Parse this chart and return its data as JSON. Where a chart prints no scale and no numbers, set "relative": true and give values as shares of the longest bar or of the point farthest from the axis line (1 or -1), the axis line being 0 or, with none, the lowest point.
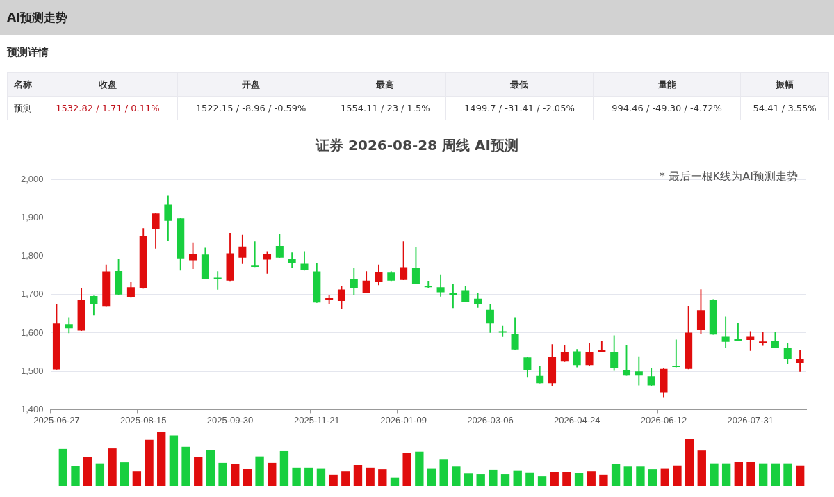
{
  "chart_data": [
    {
      "type": "other",
      "title": "AI预测走势",
      "subtitle": "预测详情",
      "annotations": [
        "名称",
        "收盘",
        "开盘",
        "最高",
        "最低",
        "量能",
        "振幅",
        "预测",
        "1532.82 / 1.71 / 0.11%",
        "1522.15 / -8.96 / -0.59%",
        "1554.11 / 23 / 1.5%",
        "1499.7 / -31.41 / -2.05%",
        "994.46 / -49.30 / -4.72%",
        "54.41 / 3.55%"
      ]
    },
    {
      "type": "candlestick",
      "title": "证券 2026-08-28 周线 AI预测",
      "annotations": [
        "* 最后一根K线为AI预测走势"
      ],
      "categories": [
        "2025-06-27",
        null,
        null,
        null,
        null,
        null,
        null,
        "2025-08-15",
        null,
        null,
        null,
        null,
        null,
        null,
        "2025-09-30",
        null,
        null,
        null,
        null,
        null,
        null,
        "2025-11-21",
        null,
        null,
        null,
        null,
        null,
        null,
        "2026-01-09",
        null,
        null,
        null,
        null,
        null,
        null,
        "2026-03-06",
        null,
        null,
        null,
        null,
        null,
        null,
        "2026-04-24",
        null,
        null,
        null,
        null,
        null,
        null,
        "2026-06-12",
        null,
        null,
        null,
        null,
        null,
        null,
        "2026-07-31",
        null,
        null,
        null,
        null
      ],
      "ohlc": [
        [
          1505,
          1675,
          1505,
          1625
        ],
        [
          1623,
          1640,
          1600,
          1612
        ],
        [
          1606,
          1717,
          1606,
          1687
        ],
        [
          1696,
          1696,
          1647,
          1675
        ],
        [
          1670,
          1777,
          1670,
          1760
        ],
        [
          1761,
          1793,
          1699,
          1700
        ],
        [
          1694,
          1733,
          1694,
          1719
        ],
        [
          1716,
          1872,
          1716,
          1853
        ],
        [
          1870,
          1911,
          1820,
          1911
        ],
        [
          1934,
          1957,
          1840,
          1892
        ],
        [
          1898,
          1898,
          1763,
          1794
        ],
        [
          1789,
          1835,
          1767,
          1805
        ],
        [
          1804,
          1821,
          1740,
          1740
        ],
        [
          1743,
          1760,
          1713,
          1740
        ],
        [
          1736,
          1860,
          1736,
          1807
        ],
        [
          1796,
          1855,
          1780,
          1825
        ],
        [
          1777,
          1838,
          1772,
          1772
        ],
        [
          1791,
          1812,
          1755,
          1806
        ],
        [
          1826,
          1858,
          1796,
          1796
        ],
        [
          1792,
          1809,
          1769,
          1782
        ],
        [
          1780,
          1812,
          1763,
          1763
        ],
        [
          1760,
          1782,
          1679,
          1679
        ],
        [
          1687,
          1697,
          1675,
          1692
        ],
        [
          1683,
          1722,
          1664,
          1713
        ],
        [
          1740,
          1768,
          1699,
          1716
        ],
        [
          1705,
          1760,
          1705,
          1736
        ],
        [
          1733,
          1777,
          1725,
          1758
        ],
        [
          1757,
          1760,
          1736,
          1736
        ],
        [
          1738,
          1838,
          1738,
          1771
        ],
        [
          1769,
          1824,
          1728,
          1728
        ],
        [
          1723,
          1735,
          1717,
          1719
        ],
        [
          1719,
          1752,
          1695,
          1706
        ],
        [
          1703,
          1727,
          1665,
          1699
        ],
        [
          1711,
          1721,
          1681,
          1681
        ],
        [
          1689,
          1703,
          1666,
          1675
        ],
        [
          1660,
          1675,
          1601,
          1625
        ],
        [
          1604,
          1618,
          1590,
          1601
        ],
        [
          1597,
          1640,
          1557,
          1557
        ],
        [
          1536,
          1536,
          1484,
          1504
        ],
        [
          1488,
          1514,
          1469,
          1469
        ],
        [
          1469,
          1570,
          1463,
          1538
        ],
        [
          1525,
          1567,
          1525,
          1550
        ],
        [
          1552,
          1557,
          1511,
          1516
        ],
        [
          1516,
          1572,
          1514,
          1549
        ],
        [
          1551,
          1579,
          1551,
          1553
        ],
        [
          1549,
          1593,
          1502,
          1508
        ],
        [
          1504,
          1567,
          1489,
          1489
        ],
        [
          1500,
          1538,
          1464,
          1489
        ],
        [
          1487,
          1508,
          1463,
          1463
        ],
        [
          1445,
          1508,
          1433,
          1506
        ],
        [
          1513,
          1582,
          1511,
          1511
        ],
        [
          1506,
          1670,
          1506,
          1601
        ],
        [
          1607,
          1713,
          1598,
          1659
        ],
        [
          1687,
          1687,
          1596,
          1596
        ],
        [
          1590,
          1642,
          1562,
          1577
        ],
        [
          1584,
          1626,
          1579,
          1579
        ],
        [
          1582,
          1604,
          1554,
          1590
        ],
        [
          1574,
          1601,
          1567,
          1577
        ],
        [
          1579,
          1601,
          1562,
          1562
        ],
        [
          1560,
          1573,
          1521,
          1531
        ],
        [
          1522.15,
          1554.11,
          1499.7,
          1532.82
        ]
      ],
      "colors": [
        "#e00d0d",
        "#18cf3f",
        "#e00d0d",
        "#18cf3f",
        "#e00d0d",
        "#18cf3f",
        "#e00d0d",
        "#e00d0d",
        "#e00d0d",
        "#18cf3f",
        "#18cf3f",
        "#e00d0d",
        "#18cf3f",
        "#18cf3f",
        "#e00d0d",
        "#e00d0d",
        "#18cf3f",
        "#e00d0d",
        "#18cf3f",
        "#18cf3f",
        "#18cf3f",
        "#18cf3f",
        "#e00d0d",
        "#e00d0d",
        "#18cf3f",
        "#e00d0d",
        "#e00d0d",
        "#18cf3f",
        "#e00d0d",
        "#18cf3f",
        "#18cf3f",
        "#18cf3f",
        "#18cf3f",
        "#18cf3f",
        "#18cf3f",
        "#18cf3f",
        "#18cf3f",
        "#18cf3f",
        "#18cf3f",
        "#18cf3f",
        "#e00d0d",
        "#e00d0d",
        "#18cf3f",
        "#e00d0d",
        "#e00d0d",
        "#18cf3f",
        "#18cf3f",
        "#18cf3f",
        "#18cf3f",
        "#e00d0d",
        "#18cf3f",
        "#e00d0d",
        "#e00d0d",
        "#18cf3f",
        "#18cf3f",
        "#18cf3f",
        "#e00d0d",
        "#e00d0d",
        "#18cf3f",
        "#18cf3f",
        "#e00d0d"
      ],
      "ylim": [
        1400,
        2000
      ],
      "yticks": [
        {
          "value": 1400,
          "label": "1,400"
        },
        {
          "value": 1500,
          "label": "1,500"
        },
        {
          "value": 1600,
          "label": "1,600"
        },
        {
          "value": 1700,
          "label": "1,700"
        },
        {
          "value": 1800,
          "label": "1,800"
        },
        {
          "value": 1900,
          "label": "1,900"
        },
        {
          "value": 2000,
          "label": "2,000"
        }
      ],
      "grid": "y"
    },
    {
      "type": "bar",
      "relative": true,
      "categories": [
        null,
        null,
        null,
        null,
        null,
        null,
        null,
        null,
        null,
        null,
        null,
        null,
        null,
        null,
        null,
        null,
        null,
        null,
        null,
        null,
        null,
        null,
        null,
        null,
        null,
        null,
        null,
        null,
        null,
        null,
        null,
        null,
        null,
        null,
        null,
        null,
        null,
        null,
        null,
        null,
        null,
        null,
        null,
        null,
        null,
        null,
        null,
        null,
        null,
        null,
        null,
        null,
        null,
        null,
        null,
        null,
        null,
        null,
        null,
        null,
        null
      ],
      "values": [
        0.69,
        0.37,
        0.54,
        0.42,
        0.7,
        0.44,
        0.27,
        0.86,
        1,
        0.94,
        0.73,
        0.54,
        0.67,
        0.43,
        0.41,
        0.32,
        0.55,
        0.43,
        0.65,
        0.34,
        0.34,
        0.33,
        0.21,
        0.27,
        0.39,
        0.34,
        0.31,
        0.16,
        0.62,
        0.64,
        0.33,
        0.49,
        0.36,
        0.23,
        0.22,
        0.3,
        0.22,
        0.29,
        0.25,
        0.18,
        0.26,
        0.26,
        0.24,
        0.27,
        0.21,
        0.41,
        0.36,
        0.36,
        0.31,
        0.33,
        0.38,
        0.88,
        0.66,
        0.42,
        0.42,
        0.45,
        0.45,
        0.42,
        0.42,
        0.42,
        0.38
      ],
      "colors": [
        "#18cf3f",
        "#18cf3f",
        "#e00d0d",
        "#18cf3f",
        "#e00d0d",
        "#18cf3f",
        "#e00d0d",
        "#e00d0d",
        "#e00d0d",
        "#18cf3f",
        "#18cf3f",
        "#e00d0d",
        "#18cf3f",
        "#18cf3f",
        "#e00d0d",
        "#e00d0d",
        "#18cf3f",
        "#e00d0d",
        "#18cf3f",
        "#18cf3f",
        "#18cf3f",
        "#18cf3f",
        "#e00d0d",
        "#e00d0d",
        "#e00d0d",
        "#e00d0d",
        "#e00d0d",
        "#18cf3f",
        "#e00d0d",
        "#18cf3f",
        "#18cf3f",
        "#18cf3f",
        "#18cf3f",
        "#18cf3f",
        "#18cf3f",
        "#18cf3f",
        "#18cf3f",
        "#18cf3f",
        "#18cf3f",
        "#18cf3f",
        "#e00d0d",
        "#e00d0d",
        "#18cf3f",
        "#e00d0d",
        "#e00d0d",
        "#18cf3f",
        "#18cf3f",
        "#18cf3f",
        "#18cf3f",
        "#e00d0d",
        "#e00d0d",
        "#e00d0d",
        "#e00d0d",
        "#18cf3f",
        "#18cf3f",
        "#e00d0d",
        "#e00d0d",
        "#18cf3f",
        "#18cf3f",
        "#18cf3f",
        "#e00d0d"
      ]
    }
  ]
}
